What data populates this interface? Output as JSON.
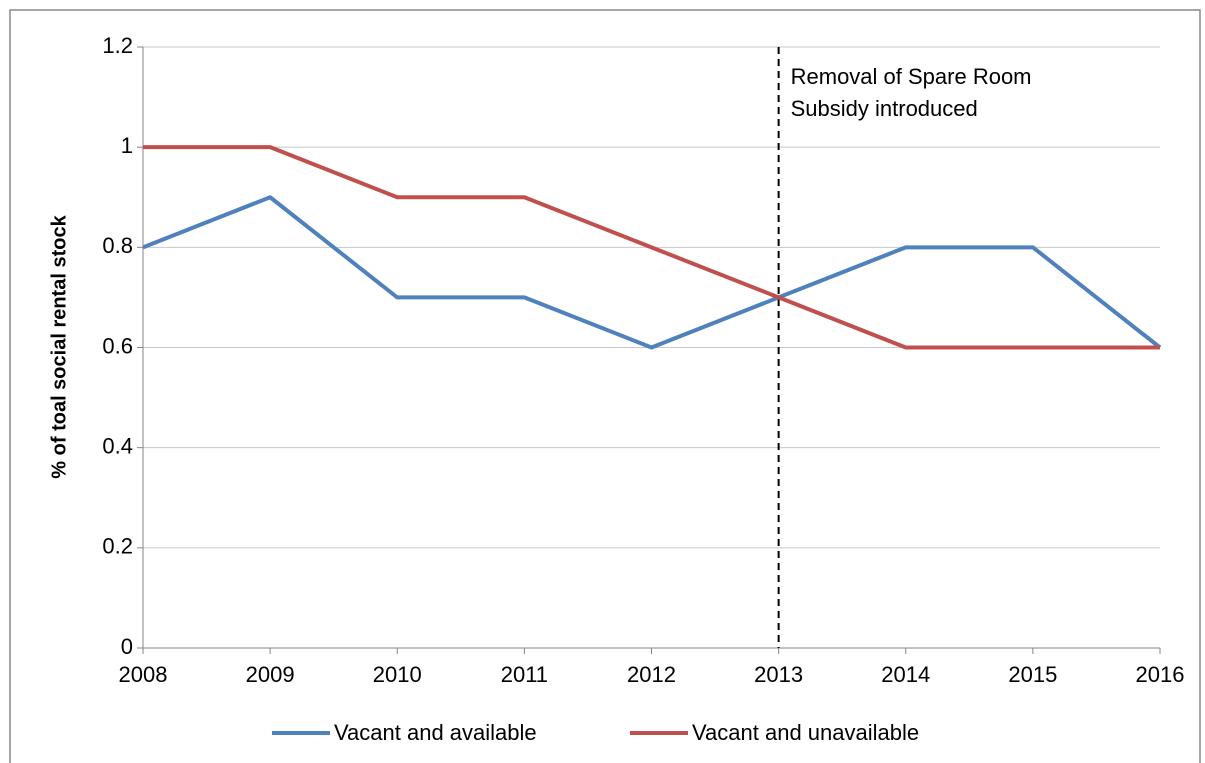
{
  "chart_data": {
    "type": "line",
    "y_label": "% of toal social rental stock",
    "x": [
      2008,
      2009,
      2010,
      2011,
      2012,
      2013,
      2014,
      2015,
      2016
    ],
    "xlim": [
      2008,
      2016
    ],
    "xticks": [
      2008,
      2009,
      2010,
      2011,
      2012,
      2013,
      2014,
      2015,
      2016
    ],
    "ylim": [
      0,
      1.2
    ],
    "yticks": [
      0,
      0.2,
      0.4,
      0.6,
      0.8,
      1,
      1.2
    ],
    "grid": true,
    "legend": "bottom",
    "series": [
      {
        "name": "Vacant and available",
        "color": "#4f81bd",
        "values": [
          0.8,
          0.9,
          0.7,
          0.7,
          0.6,
          0.7,
          0.8,
          0.8,
          0.6
        ]
      },
      {
        "name": "Vacant and unavailable",
        "color": "#c0504d",
        "values": [
          1,
          1,
          0.9,
          0.9,
          0.8,
          0.7,
          0.6,
          0.6,
          0.6
        ]
      }
    ],
    "annotations": [
      {
        "x": 2013,
        "text": [
          "Removal of Spare Room",
          "Subsidy introduced"
        ]
      }
    ]
  }
}
